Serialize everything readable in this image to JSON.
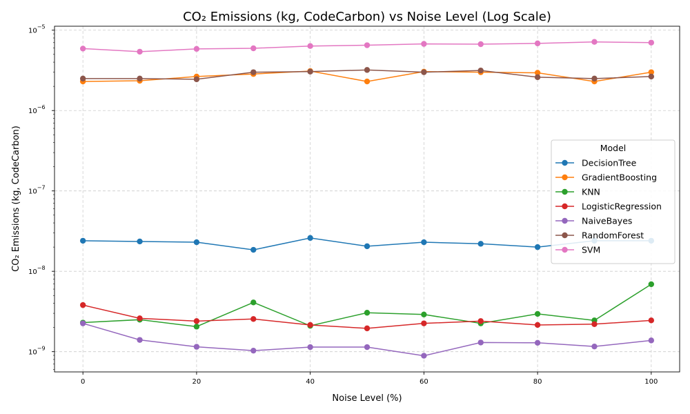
{
  "chart_data": {
    "type": "line",
    "title": "CO₂ Emissions (kg, CodeCarbon) vs Noise Level (Log Scale)",
    "xlabel": "Noise Level (%)",
    "ylabel": "CO₂ Emissions (kg, CodeCarbon)",
    "xlim": [
      -5,
      105
    ],
    "ylim": [
      5.6e-10,
      1.12e-05
    ],
    "yscale": "log",
    "grid": true,
    "xticks": [
      0,
      20,
      40,
      60,
      80,
      100
    ],
    "yticks": [
      {
        "base": "10",
        "exp": "−9",
        "value": 1e-09
      },
      {
        "base": "10",
        "exp": "−8",
        "value": 1e-08
      },
      {
        "base": "10",
        "exp": "−7",
        "value": 1e-07
      },
      {
        "base": "10",
        "exp": "−6",
        "value": 1e-06
      },
      {
        "base": "10",
        "exp": "−5",
        "value": 1e-05
      }
    ],
    "legend_title": "Model",
    "legend_position": "center-right",
    "x": [
      0,
      10,
      20,
      30,
      40,
      50,
      60,
      70,
      80,
      90,
      100
    ],
    "series": [
      {
        "name": "DecisionTree",
        "color": "#1f77b4",
        "values": [
          2.4e-08,
          2.35e-08,
          2.3e-08,
          1.85e-08,
          2.6e-08,
          2.05e-08,
          2.3e-08,
          2.2e-08,
          2e-08,
          2.4e-08,
          2.4e-08
        ]
      },
      {
        "name": "GradientBoosting",
        "color": "#ff7f0e",
        "values": [
          2.3e-06,
          2.35e-06,
          2.65e-06,
          2.85e-06,
          3.1e-06,
          2.3e-06,
          3.05e-06,
          3e-06,
          2.95e-06,
          2.3e-06,
          3e-06
        ]
      },
      {
        "name": "KNN",
        "color": "#2ca02c",
        "values": [
          2.3e-09,
          2.5e-09,
          2.05e-09,
          4.1e-09,
          2.1e-09,
          3.05e-09,
          2.9e-09,
          2.25e-09,
          2.95e-09,
          2.45e-09,
          6.9e-09
        ]
      },
      {
        "name": "LogisticRegression",
        "color": "#d62728",
        "values": [
          3.8e-09,
          2.6e-09,
          2.4e-09,
          2.55e-09,
          2.15e-09,
          1.95e-09,
          2.25e-09,
          2.4e-09,
          2.15e-09,
          2.2e-09,
          2.45e-09
        ]
      },
      {
        "name": "NaiveBayes",
        "color": "#9467bd",
        "values": [
          2.25e-09,
          1.4e-09,
          1.15e-09,
          1.03e-09,
          1.14e-09,
          1.14e-09,
          8.9e-10,
          1.3e-09,
          1.29e-09,
          1.16e-09,
          1.38e-09
        ]
      },
      {
        "name": "RandomForest",
        "color": "#8c564b",
        "values": [
          2.5e-06,
          2.5e-06,
          2.45e-06,
          3e-06,
          3.05e-06,
          3.2e-06,
          3e-06,
          3.15e-06,
          2.6e-06,
          2.5e-06,
          2.65e-06
        ]
      },
      {
        "name": "SVM",
        "color": "#e377c2",
        "values": [
          5.9e-06,
          5.4e-06,
          5.85e-06,
          5.95e-06,
          6.35e-06,
          6.5e-06,
          6.75e-06,
          6.7e-06,
          6.85e-06,
          7.15e-06,
          7e-06
        ]
      }
    ]
  }
}
